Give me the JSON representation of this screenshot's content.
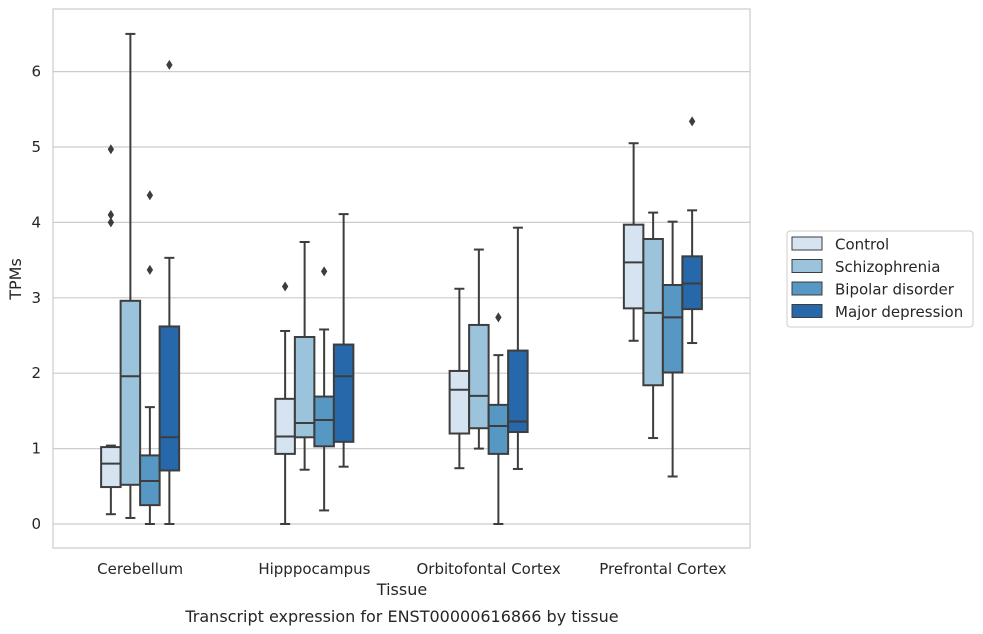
{
  "caption": "Transcript expression for ENST00000616866 by tissue",
  "chart_data": {
    "type": "boxplot",
    "xlabel": "Tissue",
    "ylabel": "TPMs",
    "ylim": [
      -0.32,
      6.85
    ],
    "yticks": [
      0,
      1,
      2,
      3,
      4,
      5,
      6
    ],
    "grid": true,
    "legend_position": "right",
    "categories": [
      "Cerebellum",
      "Hipppocampus",
      "Orbitofontal Cortex",
      "Prefrontal Cortex"
    ],
    "series": [
      {
        "name": "Control",
        "color": "#d6e4f2",
        "boxes": [
          {
            "whislo": 0.13,
            "q1": 0.49,
            "med": 0.8,
            "q3": 1.02,
            "whishi": 1.04,
            "fliers": [
              4.0,
              4.1,
              4.97
            ]
          },
          {
            "whislo": 0.0,
            "q1": 0.93,
            "med": 1.16,
            "q3": 1.66,
            "whishi": 2.56,
            "fliers": [
              3.15
            ]
          },
          {
            "whislo": 0.74,
            "q1": 1.2,
            "med": 1.78,
            "q3": 2.03,
            "whishi": 3.12,
            "fliers": []
          },
          {
            "whislo": 2.43,
            "q1": 2.86,
            "med": 3.47,
            "q3": 3.97,
            "whishi": 5.05,
            "fliers": []
          }
        ]
      },
      {
        "name": "Schizophrenia",
        "color": "#9bc3dc",
        "boxes": [
          {
            "whislo": 0.08,
            "q1": 0.52,
            "med": 1.96,
            "q3": 2.96,
            "whishi": 6.5,
            "fliers": []
          },
          {
            "whislo": 0.72,
            "q1": 1.15,
            "med": 1.34,
            "q3": 2.48,
            "whishi": 3.74,
            "fliers": []
          },
          {
            "whislo": 1.0,
            "q1": 1.27,
            "med": 1.7,
            "q3": 2.64,
            "whishi": 3.64,
            "fliers": []
          },
          {
            "whislo": 1.14,
            "q1": 1.84,
            "med": 2.8,
            "q3": 3.78,
            "whishi": 4.13,
            "fliers": []
          }
        ]
      },
      {
        "name": "Bipolar disorder",
        "color": "#5697c4",
        "boxes": [
          {
            "whislo": 0.0,
            "q1": 0.25,
            "med": 0.57,
            "q3": 0.91,
            "whishi": 1.55,
            "fliers": [
              3.37,
              4.36
            ]
          },
          {
            "whislo": 0.18,
            "q1": 1.03,
            "med": 1.38,
            "q3": 1.69,
            "whishi": 2.58,
            "fliers": [
              3.35
            ]
          },
          {
            "whislo": 0.0,
            "q1": 0.93,
            "med": 1.3,
            "q3": 1.58,
            "whishi": 2.24,
            "fliers": [
              2.74
            ]
          },
          {
            "whislo": 0.63,
            "q1": 2.01,
            "med": 2.74,
            "q3": 3.17,
            "whishi": 4.01,
            "fliers": []
          }
        ]
      },
      {
        "name": "Major depression",
        "color": "#2768ab",
        "boxes": [
          {
            "whislo": 0.0,
            "q1": 0.71,
            "med": 1.15,
            "q3": 2.62,
            "whishi": 3.53,
            "fliers": [
              6.09
            ]
          },
          {
            "whislo": 0.76,
            "q1": 1.09,
            "med": 1.96,
            "q3": 2.38,
            "whishi": 4.11,
            "fliers": []
          },
          {
            "whislo": 0.73,
            "q1": 1.22,
            "med": 1.36,
            "q3": 2.3,
            "whishi": 3.93,
            "fliers": []
          },
          {
            "whislo": 2.4,
            "q1": 2.85,
            "med": 3.19,
            "q3": 3.55,
            "whishi": 4.16,
            "fliers": [
              5.34
            ]
          }
        ]
      }
    ]
  }
}
